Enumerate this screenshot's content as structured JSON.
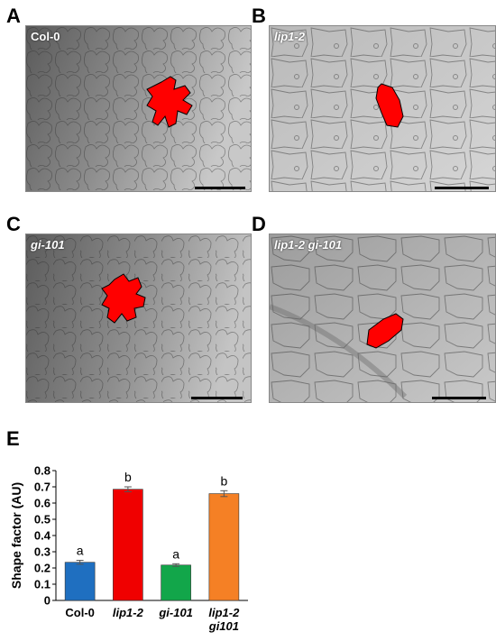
{
  "figure": {
    "panels": [
      {
        "letter": "A",
        "genotype": "Col-0",
        "italic": false
      },
      {
        "letter": "B",
        "genotype": "lip1-2",
        "italic": true
      },
      {
        "letter": "C",
        "genotype": "gi-101",
        "italic": true
      },
      {
        "letter": "D",
        "genotype": "lip1-2 gi-101",
        "italic": true
      }
    ],
    "chart_letter": "E",
    "highlight_color": "#ff0000"
  },
  "chart_data": {
    "type": "bar",
    "categories": [
      "Col-0",
      "lip1-2",
      "gi-101",
      "lip1-2 gi101"
    ],
    "category_lines": [
      [
        "Col-0"
      ],
      [
        "lip1-2"
      ],
      [
        "gi-101"
      ],
      [
        "lip1-2",
        "gi101"
      ]
    ],
    "category_italic": [
      false,
      true,
      true,
      true
    ],
    "values": [
      0.235,
      0.685,
      0.218,
      0.658
    ],
    "errors": [
      0.012,
      0.015,
      0.008,
      0.018
    ],
    "significance": [
      "a",
      "b",
      "a",
      "b"
    ],
    "colors": [
      "#1f6fc0",
      "#f00000",
      "#12a64a",
      "#f58025"
    ],
    "ylabel": "Shape factor (AU)",
    "xlabel": "",
    "ylim": [
      0,
      0.8
    ],
    "yticks": [
      "0",
      "0.1",
      "0.2",
      "0.3",
      "0.4",
      "0.5",
      "0.6",
      "0.7",
      "0.8"
    ],
    "grid": false
  }
}
